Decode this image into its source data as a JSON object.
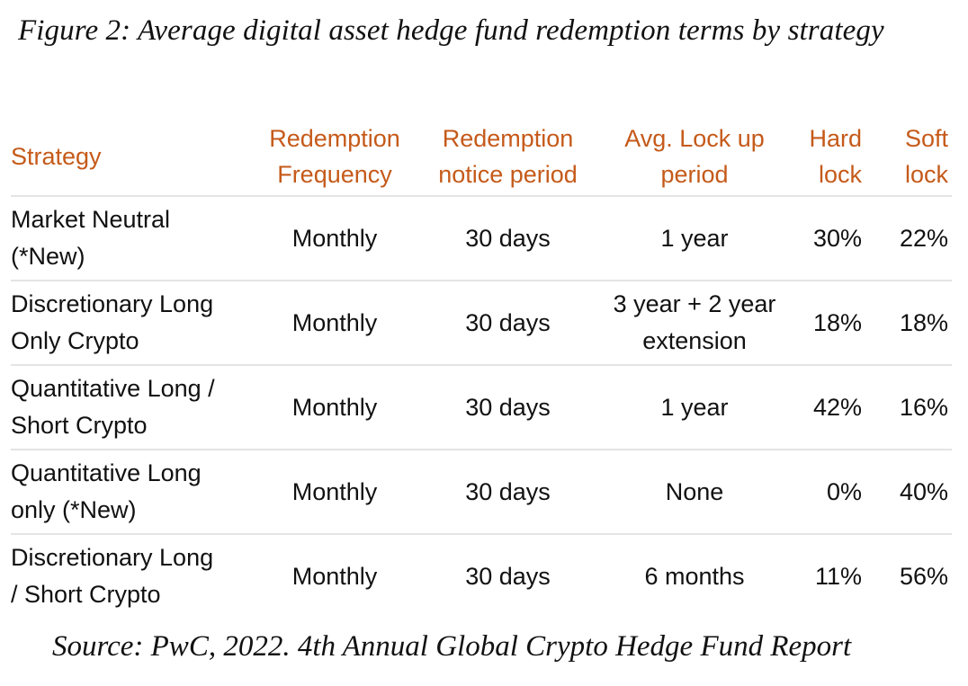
{
  "figure_title": "Figure 2: Average digital asset hedge fund redemption terms by strategy",
  "table": {
    "headers": [
      [
        "Strategy"
      ],
      [
        "Redemption",
        "Frequency"
      ],
      [
        "Redemption",
        "notice period"
      ],
      [
        "Avg. Lock up",
        "period"
      ],
      [
        "Hard",
        "lock"
      ],
      [
        "Soft",
        "lock"
      ]
    ],
    "rows": [
      {
        "strategy": [
          "Market Neutral",
          "(*New)"
        ],
        "frequency": "Monthly",
        "notice": "30 days",
        "lockup": [
          "1 year"
        ],
        "hard": "30%",
        "soft": "22%"
      },
      {
        "strategy": [
          "Discretionary Long",
          "Only Crypto"
        ],
        "frequency": "Monthly",
        "notice": "30 days",
        "lockup": [
          "3 year + 2 year",
          "extension"
        ],
        "hard": "18%",
        "soft": "18%"
      },
      {
        "strategy": [
          "Quantitative Long /",
          "Short Crypto"
        ],
        "frequency": "Monthly",
        "notice": "30 days",
        "lockup": [
          "1 year"
        ],
        "hard": "42%",
        "soft": "16%"
      },
      {
        "strategy": [
          "Quantitative Long",
          "only (*New)"
        ],
        "frequency": "Monthly",
        "notice": "30 days",
        "lockup": [
          "None"
        ],
        "hard": "0%",
        "soft": "40%"
      },
      {
        "strategy": [
          "Discretionary Long",
          "/ Short Crypto"
        ],
        "frequency": "Monthly",
        "notice": "30 days",
        "lockup": [
          "6 months"
        ],
        "hard": "11%",
        "soft": "56%"
      }
    ]
  },
  "source": "Source: PwC, 2022. 4th Annual Global Crypto Hedge Fund Report",
  "colors": {
    "header_text": "#c55a1a",
    "body_text": "#111111",
    "row_divider": "#e4e4e4"
  }
}
